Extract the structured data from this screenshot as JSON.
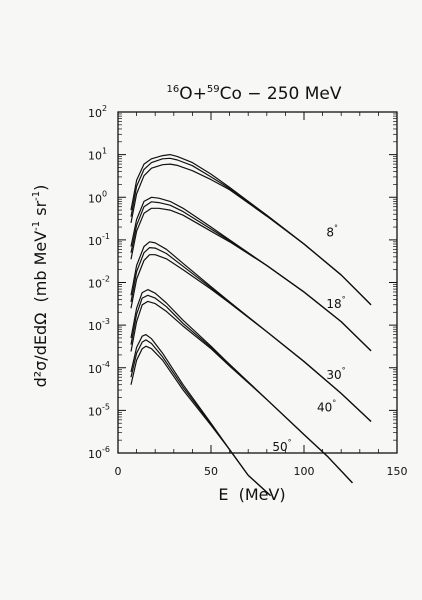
{
  "chart_data": {
    "type": "line",
    "title": {
      "mass1": "16",
      "el1": "O",
      "plus": "+",
      "mass2": "59",
      "el2": "Co",
      "rest": " − 250 MeV"
    },
    "xlabel": "E  (MeV)",
    "ylabel": {
      "main": "d²σ/dEdΩ  (mb MeV",
      "exp1": "-1",
      "mid": " sr",
      "exp2": "-1",
      "end": ")"
    },
    "xlim": [
      0,
      150
    ],
    "ylim": [
      1e-06,
      100
    ],
    "y_scale": "log",
    "x_ticks": [
      {
        "v": 0,
        "label": "0"
      },
      {
        "v": 50,
        "label": "50"
      },
      {
        "v": 100,
        "label": "100"
      },
      {
        "v": 150,
        "label": "150"
      }
    ],
    "y_ticks": [
      {
        "exp": 2,
        "label": "10",
        "sup": "2"
      },
      {
        "exp": 1,
        "label": "10",
        "sup": "1"
      },
      {
        "exp": 0,
        "label": "10",
        "sup": "0"
      },
      {
        "exp": -1,
        "label": "10",
        "sup": "-1"
      },
      {
        "exp": -2,
        "label": "10",
        "sup": "-2"
      },
      {
        "exp": -3,
        "label": "10",
        "sup": "-3"
      },
      {
        "exp": -4,
        "label": "10",
        "sup": "-4"
      },
      {
        "exp": -5,
        "label": "10",
        "sup": "-5"
      },
      {
        "exp": -6,
        "label": "10",
        "sup": "-6"
      }
    ],
    "series": [
      {
        "name": "8°",
        "curves": [
          [
            [
              7,
              0.5
            ],
            [
              10,
              2.5
            ],
            [
              14,
              6
            ],
            [
              18,
              8
            ],
            [
              24,
              9.5
            ],
            [
              28,
              10
            ],
            [
              32,
              9
            ],
            [
              40,
              6.5
            ],
            [
              50,
              3.5
            ],
            [
              60,
              1.7
            ],
            [
              80,
              0.38
            ],
            [
              100,
              0.08
            ],
            [
              120,
              0.015
            ],
            [
              136,
              0.003
            ]
          ],
          [
            [
              7,
              0.35
            ],
            [
              10,
              1.8
            ],
            [
              14,
              4.5
            ],
            [
              18,
              6.5
            ],
            [
              24,
              8
            ],
            [
              28,
              8.2
            ],
            [
              32,
              7.5
            ],
            [
              40,
              5.5
            ],
            [
              50,
              3
            ],
            [
              60,
              1.6
            ],
            [
              80,
              0.38
            ],
            [
              100,
              0.08
            ],
            [
              120,
              0.015
            ],
            [
              136,
              0.003
            ]
          ],
          [
            [
              7,
              0.25
            ],
            [
              10,
              1.2
            ],
            [
              14,
              3.2
            ],
            [
              18,
              4.8
            ],
            [
              24,
              5.8
            ],
            [
              28,
              6
            ],
            [
              32,
              5.6
            ],
            [
              40,
              4.2
            ],
            [
              50,
              2.6
            ],
            [
              60,
              1.5
            ],
            [
              80,
              0.36
            ],
            [
              100,
              0.08
            ],
            [
              120,
              0.015
            ],
            [
              136,
              0.003
            ]
          ]
        ]
      },
      {
        "name": "18°",
        "curves": [
          [
            [
              7,
              0.07
            ],
            [
              10,
              0.3
            ],
            [
              14,
              0.8
            ],
            [
              18,
              1.0
            ],
            [
              22,
              0.95
            ],
            [
              28,
              0.8
            ],
            [
              35,
              0.55
            ],
            [
              50,
              0.2
            ],
            [
              60,
              0.1
            ],
            [
              80,
              0.025
            ],
            [
              100,
              0.006
            ],
            [
              120,
              0.0012
            ],
            [
              136,
              0.00025
            ]
          ],
          [
            [
              7,
              0.05
            ],
            [
              10,
              0.22
            ],
            [
              14,
              0.6
            ],
            [
              18,
              0.78
            ],
            [
              22,
              0.75
            ],
            [
              28,
              0.65
            ],
            [
              35,
              0.46
            ],
            [
              50,
              0.18
            ],
            [
              60,
              0.095
            ],
            [
              80,
              0.025
            ],
            [
              100,
              0.006
            ],
            [
              120,
              0.0012
            ],
            [
              136,
              0.00025
            ]
          ],
          [
            [
              7,
              0.035
            ],
            [
              10,
              0.16
            ],
            [
              14,
              0.42
            ],
            [
              18,
              0.55
            ],
            [
              22,
              0.55
            ],
            [
              28,
              0.5
            ],
            [
              35,
              0.38
            ],
            [
              50,
              0.16
            ],
            [
              60,
              0.09
            ],
            [
              80,
              0.025
            ],
            [
              100,
              0.006
            ],
            [
              120,
              0.0012
            ],
            [
              136,
              0.00025
            ]
          ]
        ]
      },
      {
        "name": "30°",
        "curves": [
          [
            [
              7,
              0.005
            ],
            [
              10,
              0.025
            ],
            [
              14,
              0.07
            ],
            [
              17,
              0.09
            ],
            [
              20,
              0.085
            ],
            [
              26,
              0.06
            ],
            [
              35,
              0.028
            ],
            [
              50,
              0.008
            ],
            [
              60,
              0.0035
            ],
            [
              80,
              0.0007
            ],
            [
              100,
              0.00014
            ],
            [
              120,
              2.5e-05
            ],
            [
              136,
              5.5e-06
            ]
          ],
          [
            [
              7,
              0.0035
            ],
            [
              10,
              0.018
            ],
            [
              14,
              0.05
            ],
            [
              17,
              0.066
            ],
            [
              20,
              0.064
            ],
            [
              26,
              0.048
            ],
            [
              35,
              0.024
            ],
            [
              50,
              0.0075
            ],
            [
              60,
              0.0034
            ],
            [
              80,
              0.0007
            ],
            [
              100,
              0.00014
            ],
            [
              120,
              2.5e-05
            ],
            [
              136,
              5.5e-06
            ]
          ],
          [
            [
              7,
              0.0025
            ],
            [
              10,
              0.012
            ],
            [
              14,
              0.033
            ],
            [
              17,
              0.045
            ],
            [
              20,
              0.045
            ],
            [
              26,
              0.036
            ],
            [
              35,
              0.02
            ],
            [
              50,
              0.007
            ],
            [
              60,
              0.0033
            ],
            [
              80,
              0.0007
            ],
            [
              100,
              0.00014
            ],
            [
              120,
              2.5e-05
            ],
            [
              136,
              5.5e-06
            ]
          ]
        ]
      },
      {
        "name": "40°",
        "curves": [
          [
            [
              7,
              0.0005
            ],
            [
              10,
              0.0025
            ],
            [
              13,
              0.0058
            ],
            [
              16,
              0.0068
            ],
            [
              20,
              0.0056
            ],
            [
              26,
              0.0033
            ],
            [
              35,
              0.0013
            ],
            [
              50,
              0.00032
            ],
            [
              60,
              0.00012
            ],
            [
              80,
              1.8e-05
            ],
            [
              100,
              2.7e-06
            ],
            [
              113,
              8e-07
            ],
            [
              126,
              2e-07
            ]
          ],
          [
            [
              7,
              0.00035
            ],
            [
              10,
              0.0018
            ],
            [
              13,
              0.0043
            ],
            [
              16,
              0.005
            ],
            [
              20,
              0.0043
            ],
            [
              26,
              0.0027
            ],
            [
              35,
              0.0011
            ],
            [
              50,
              0.0003
            ],
            [
              60,
              0.00012
            ],
            [
              80,
              1.8e-05
            ],
            [
              100,
              2.7e-06
            ],
            [
              113,
              8e-07
            ],
            [
              126,
              2e-07
            ]
          ],
          [
            [
              7,
              0.00024
            ],
            [
              10,
              0.0012
            ],
            [
              13,
              0.003
            ],
            [
              16,
              0.0036
            ],
            [
              20,
              0.0032
            ],
            [
              26,
              0.0021
            ],
            [
              35,
              0.00095
            ],
            [
              50,
              0.00028
            ],
            [
              60,
              0.00011
            ],
            [
              80,
              1.8e-05
            ],
            [
              100,
              2.7e-06
            ],
            [
              113,
              8e-07
            ],
            [
              126,
              2e-07
            ]
          ]
        ]
      },
      {
        "name": "50°",
        "curves": [
          [
            [
              7,
              8e-05
            ],
            [
              10,
              0.0003
            ],
            [
              13,
              0.00055
            ],
            [
              15,
              0.0006
            ],
            [
              18,
              0.00048
            ],
            [
              24,
              0.00022
            ],
            [
              35,
              4e-05
            ],
            [
              50,
              5e-06
            ],
            [
              60,
              1.2e-06
            ],
            [
              70,
              3e-07
            ],
            [
              82,
              1e-07
            ]
          ],
          [
            [
              7,
              6e-05
            ],
            [
              10,
              0.00022
            ],
            [
              13,
              0.0004
            ],
            [
              15,
              0.00045
            ],
            [
              18,
              0.00037
            ],
            [
              24,
              0.00018
            ],
            [
              35,
              3.5e-05
            ],
            [
              50,
              4.8e-06
            ],
            [
              60,
              1.2e-06
            ],
            [
              70,
              3e-07
            ],
            [
              82,
              1e-07
            ]
          ],
          [
            [
              7,
              4e-05
            ],
            [
              10,
              0.00015
            ],
            [
              13,
              0.00028
            ],
            [
              15,
              0.00032
            ],
            [
              18,
              0.00028
            ],
            [
              24,
              0.00015
            ],
            [
              35,
              3e-05
            ],
            [
              50,
              4.5e-06
            ],
            [
              60,
              1.2e-06
            ],
            [
              70,
              3e-07
            ],
            [
              82,
              1e-07
            ]
          ]
        ]
      }
    ],
    "labels": [
      {
        "text": "8",
        "deg": "°",
        "x": 112,
        "y": 0.12
      },
      {
        "text": "18",
        "deg": "°",
        "x": 112,
        "y": 0.0025
      },
      {
        "text": "30",
        "deg": "°",
        "x": 112,
        "y": 5.5e-05
      },
      {
        "text": "40",
        "deg": "°",
        "x": 107,
        "y": 9.5e-06
      },
      {
        "text": "50",
        "deg": "°",
        "x": 83,
        "y": 1.1e-06
      }
    ]
  }
}
